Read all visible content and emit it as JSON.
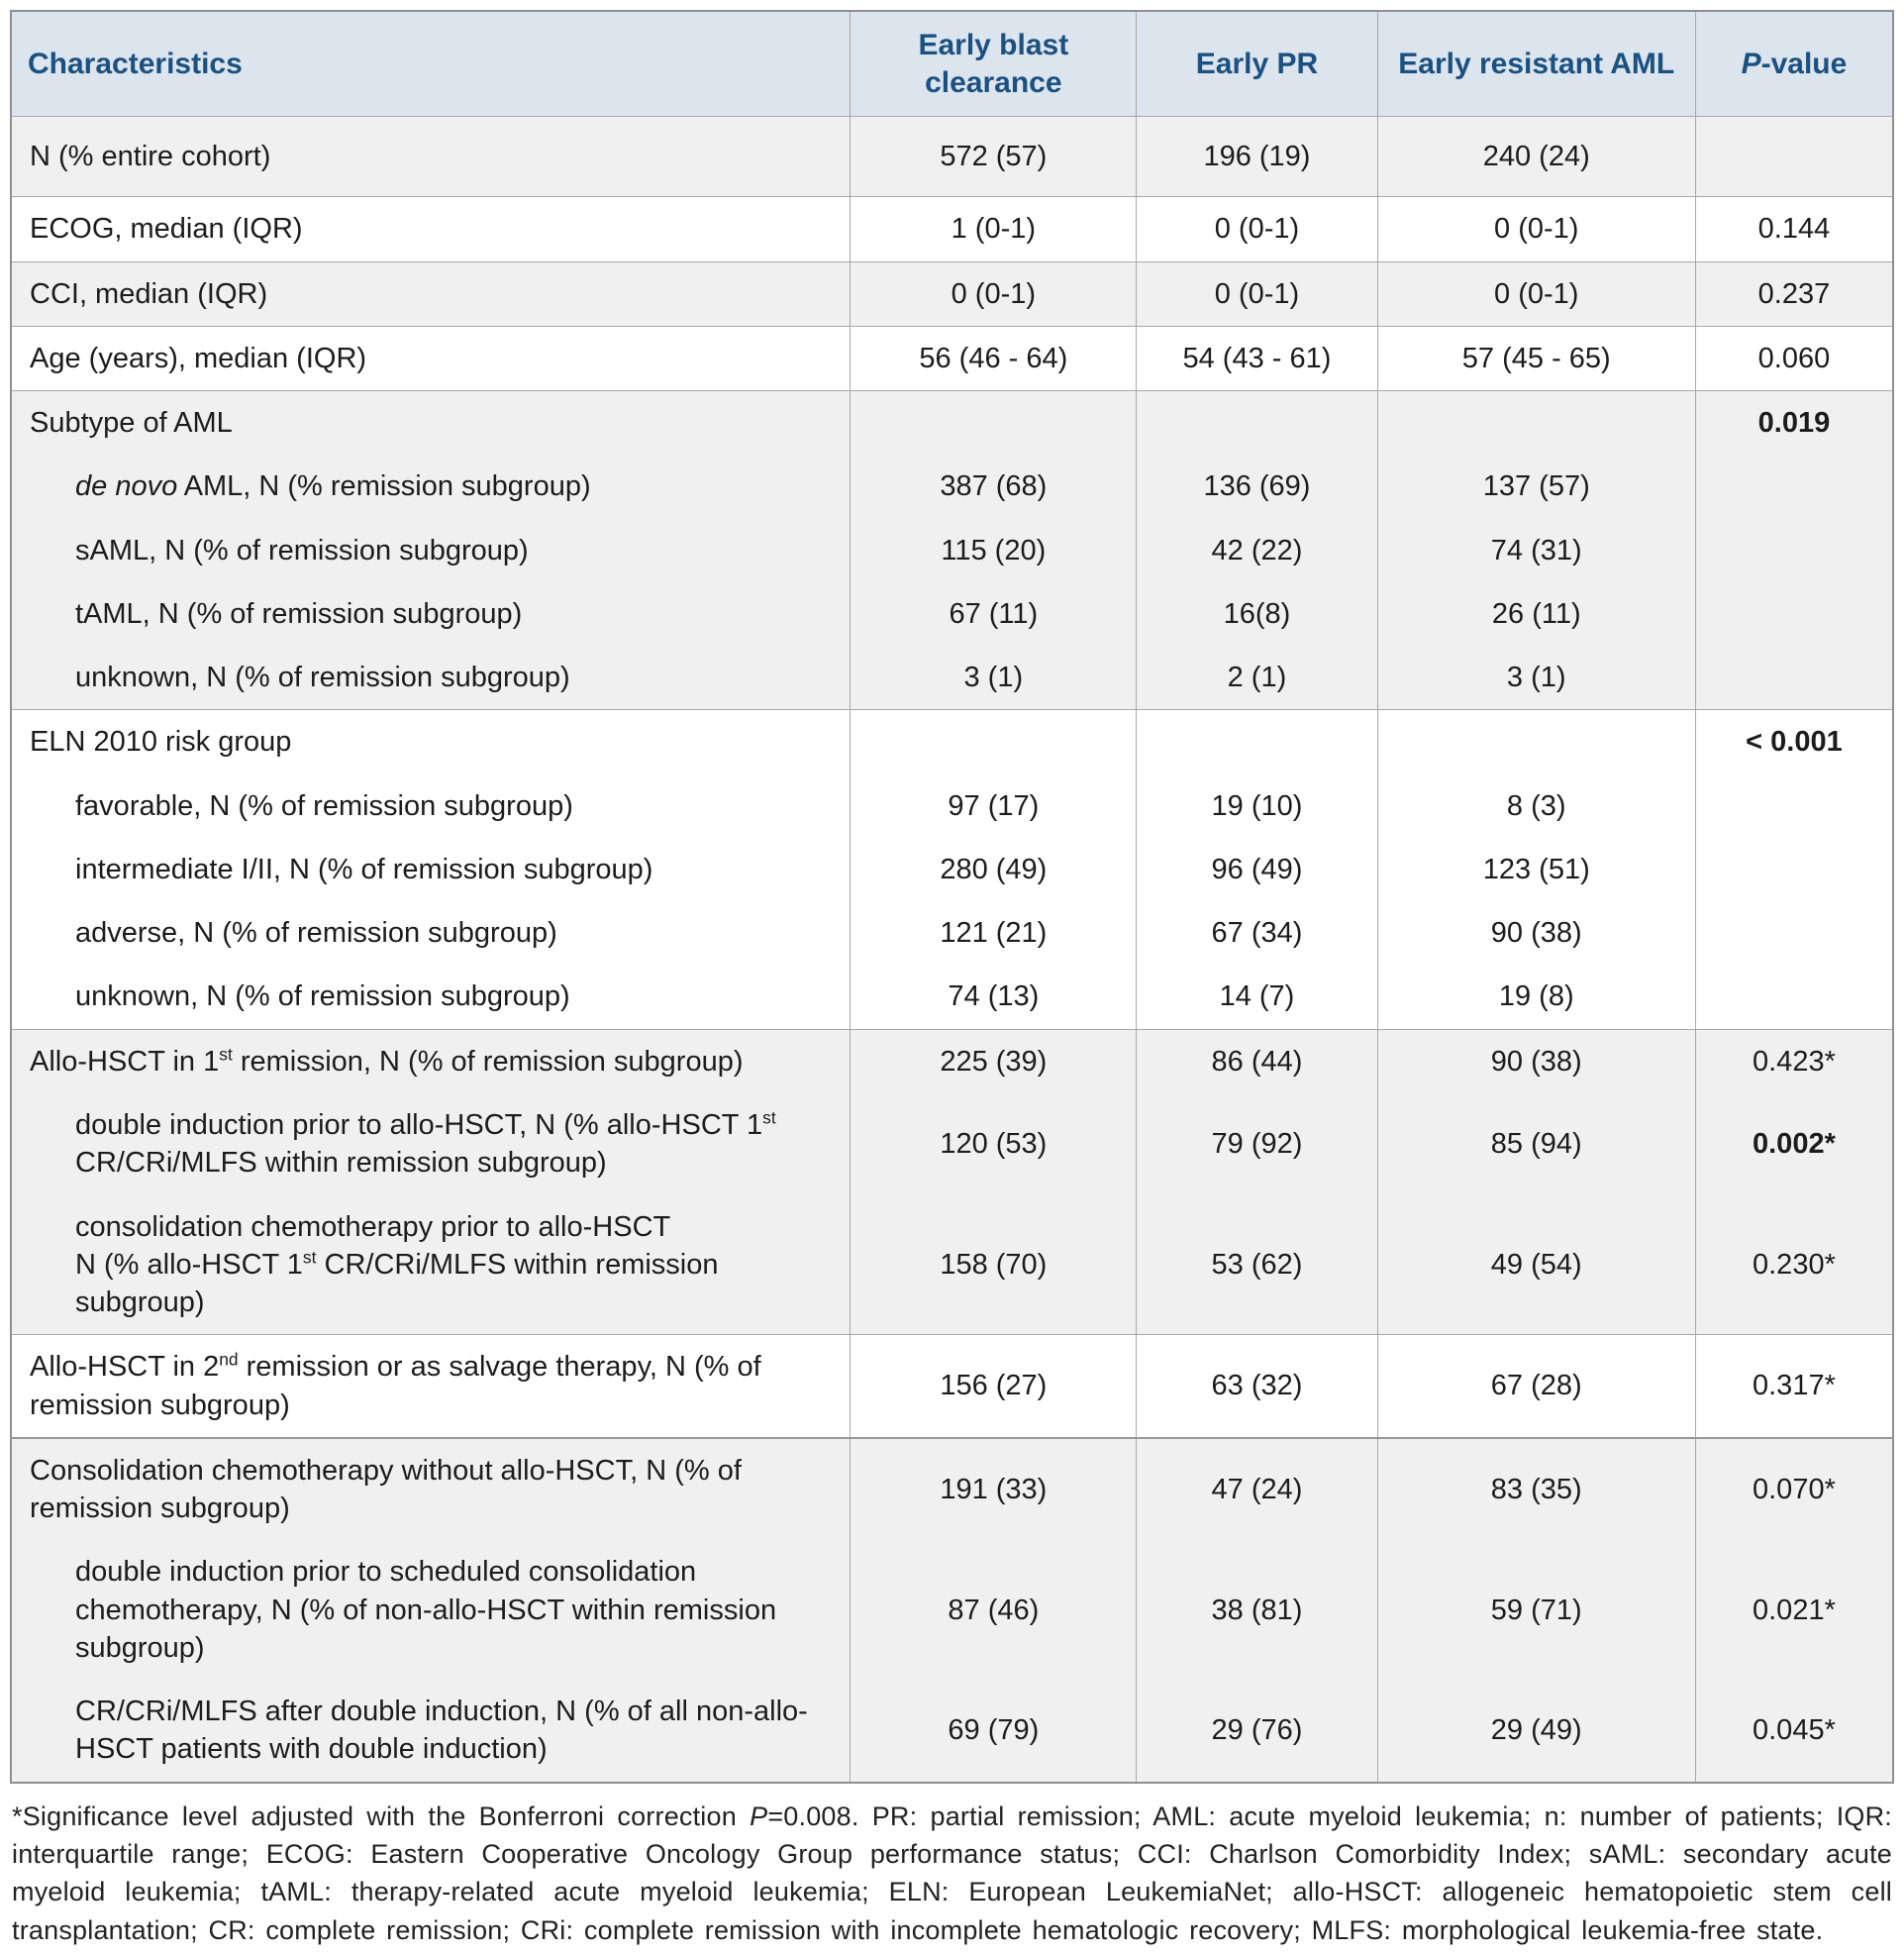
{
  "colors": {
    "header_bg": "#dce4ee",
    "header_text": "#1b5180",
    "row_alt_bg": "#f0f0f0",
    "row_bg": "#ffffff",
    "border": "#a8a8a8",
    "outer_border": "#8f8f8f",
    "text": "#1c1c1c"
  },
  "header": {
    "columns": [
      {
        "id": "characteristics",
        "align": "left",
        "parts": [
          {
            "t": "text",
            "v": "Characteristics"
          }
        ]
      },
      {
        "id": "early-blast-clearance",
        "parts": [
          {
            "t": "text",
            "v": "Early blast clearance"
          }
        ]
      },
      {
        "id": "early-pr",
        "parts": [
          {
            "t": "text",
            "v": "Early PR"
          }
        ]
      },
      {
        "id": "early-resistant-aml",
        "parts": [
          {
            "t": "text",
            "v": "Early resistant AML"
          }
        ]
      },
      {
        "id": "p-value",
        "parts": [
          {
            "t": "i",
            "v": "P"
          },
          {
            "t": "text",
            "v": "-value"
          }
        ]
      }
    ]
  },
  "rows": [
    {
      "shade": "gray",
      "first": true,
      "tall": true,
      "indent": false,
      "p_bold": false,
      "label_parts": [
        {
          "t": "text",
          "v": "N (% entire cohort)"
        }
      ],
      "values": [
        "572 (57)",
        "196 (19)",
        "240 (24)",
        ""
      ]
    },
    {
      "shade": "white",
      "first": true,
      "indent": false,
      "p_bold": false,
      "label_parts": [
        {
          "t": "text",
          "v": "ECOG, median (IQR)"
        }
      ],
      "values": [
        "1 (0-1)",
        "0 (0-1)",
        "0 (0-1)",
        "0.144"
      ]
    },
    {
      "shade": "gray",
      "first": true,
      "indent": false,
      "p_bold": false,
      "label_parts": [
        {
          "t": "text",
          "v": "CCI, median (IQR)"
        }
      ],
      "values": [
        "0 (0-1)",
        "0 (0-1)",
        "0 (0-1)",
        "0.237"
      ]
    },
    {
      "shade": "white",
      "first": true,
      "indent": false,
      "p_bold": false,
      "label_parts": [
        {
          "t": "text",
          "v": "Age (years), median (IQR)"
        }
      ],
      "values": [
        "56 (46 - 64)",
        "54 (43 - 61)",
        "57 (45 - 65)",
        "0.060"
      ]
    },
    {
      "shade": "gray",
      "first": true,
      "indent": false,
      "p_bold": true,
      "label_parts": [
        {
          "t": "text",
          "v": "Subtype of AML"
        }
      ],
      "values": [
        "",
        "",
        "",
        "0.019"
      ]
    },
    {
      "shade": "gray",
      "first": false,
      "indent": true,
      "p_bold": false,
      "label_parts": [
        {
          "t": "i",
          "v": "de novo"
        },
        {
          "t": "text",
          "v": " AML, N (% remission subgroup)"
        }
      ],
      "values": [
        "387 (68)",
        "136 (69)",
        "137 (57)",
        ""
      ]
    },
    {
      "shade": "gray",
      "first": false,
      "indent": true,
      "p_bold": false,
      "label_parts": [
        {
          "t": "text",
          "v": "sAML, N (% of remission subgroup)"
        }
      ],
      "values": [
        "115 (20)",
        "42 (22)",
        "74 (31)",
        ""
      ]
    },
    {
      "shade": "gray",
      "first": false,
      "indent": true,
      "p_bold": false,
      "label_parts": [
        {
          "t": "text",
          "v": "tAML, N (% of remission subgroup)"
        }
      ],
      "values": [
        "67 (11)",
        "16(8)",
        "26 (11)",
        ""
      ]
    },
    {
      "shade": "gray",
      "first": false,
      "indent": true,
      "p_bold": false,
      "label_parts": [
        {
          "t": "text",
          "v": "unknown, N (% of remission subgroup)"
        }
      ],
      "values": [
        "3 (1)",
        "2 (1)",
        "3 (1)",
        ""
      ]
    },
    {
      "shade": "white",
      "first": true,
      "indent": false,
      "p_bold": true,
      "label_parts": [
        {
          "t": "text",
          "v": "ELN 2010 risk group"
        }
      ],
      "values": [
        "",
        "",
        "",
        "< 0.001"
      ]
    },
    {
      "shade": "white",
      "first": false,
      "indent": true,
      "p_bold": false,
      "label_parts": [
        {
          "t": "text",
          "v": "favorable, N (% of remission subgroup)"
        }
      ],
      "values": [
        "97 (17)",
        "19 (10)",
        "8 (3)",
        ""
      ]
    },
    {
      "shade": "white",
      "first": false,
      "indent": true,
      "p_bold": false,
      "label_parts": [
        {
          "t": "text",
          "v": "intermediate I/II, N (% of remission subgroup)"
        }
      ],
      "values": [
        "280 (49)",
        "96 (49)",
        "123 (51)",
        ""
      ]
    },
    {
      "shade": "white",
      "first": false,
      "indent": true,
      "p_bold": false,
      "label_parts": [
        {
          "t": "text",
          "v": "adverse, N (% of remission subgroup)"
        }
      ],
      "values": [
        "121 (21)",
        "67 (34)",
        "90 (38)",
        ""
      ]
    },
    {
      "shade": "white",
      "first": false,
      "indent": true,
      "p_bold": false,
      "label_parts": [
        {
          "t": "text",
          "v": "unknown, N (% of remission subgroup)"
        }
      ],
      "values": [
        "74 (13)",
        "14 (7)",
        "19 (8)",
        ""
      ]
    },
    {
      "shade": "gray",
      "first": true,
      "indent": false,
      "p_bold": false,
      "label_parts": [
        {
          "t": "text",
          "v": "Allo-HSCT in 1"
        },
        {
          "t": "sup",
          "v": "st"
        },
        {
          "t": "text",
          "v": " remission, N (% of remission subgroup)"
        }
      ],
      "values": [
        "225 (39)",
        "86 (44)",
        "90 (38)",
        "0.423*"
      ]
    },
    {
      "shade": "gray",
      "first": false,
      "indent": true,
      "p_bold": true,
      "label_parts": [
        {
          "t": "text",
          "v": "double induction prior to allo-HSCT, N (% allo-HSCT 1"
        },
        {
          "t": "sup",
          "v": "st"
        },
        {
          "t": "text",
          "v": " CR/CRi/MLFS within remission subgroup)"
        }
      ],
      "values": [
        "120 (53)",
        "79 (92)",
        "85 (94)",
        "0.002*"
      ]
    },
    {
      "shade": "gray",
      "first": false,
      "indent": true,
      "p_bold": false,
      "label_parts": [
        {
          "t": "text",
          "v": "consolidation chemotherapy prior to allo-HSCT"
        },
        {
          "t": "br"
        },
        {
          "t": "text",
          "v": "N (% allo-HSCT 1"
        },
        {
          "t": "sup",
          "v": "st"
        },
        {
          "t": "text",
          "v": " CR/CRi/MLFS within remission subgroup)"
        }
      ],
      "values": [
        "158 (70)",
        "53 (62)",
        "49 (54)",
        "0.230*"
      ]
    },
    {
      "shade": "white",
      "first": true,
      "indent": false,
      "p_bold": false,
      "label_parts": [
        {
          "t": "text",
          "v": "Allo-HSCT in 2"
        },
        {
          "t": "sup",
          "v": "nd"
        },
        {
          "t": "text",
          "v": " remission or as salvage therapy, N (% of remission subgroup)"
        }
      ],
      "values": [
        "156 (27)",
        "63 (32)",
        "67 (28)",
        "0.317*"
      ]
    },
    {
      "shade": "gray",
      "first": true,
      "thick": true,
      "indent": false,
      "p_bold": false,
      "label_parts": [
        {
          "t": "text",
          "v": "Consolidation chemotherapy without allo-HSCT, N (% of remission subgroup)"
        }
      ],
      "values": [
        "191 (33)",
        "47 (24)",
        "83 (35)",
        "0.070*"
      ]
    },
    {
      "shade": "gray",
      "first": false,
      "indent": true,
      "p_bold": false,
      "label_parts": [
        {
          "t": "text",
          "v": "double induction prior to scheduled consolidation chemotherapy, N (% of non-allo-HSCT within remission subgroup)"
        }
      ],
      "values": [
        "87 (46)",
        "38 (81)",
        "59 (71)",
        "0.021*"
      ]
    },
    {
      "shade": "gray",
      "first": false,
      "indent": true,
      "p_bold": false,
      "label_parts": [
        {
          "t": "text",
          "v": "CR/CRi/MLFS after double induction, N (% of all non-allo-HSCT patients with double induction)"
        }
      ],
      "values": [
        "69 (79)",
        "29 (76)",
        "29 (49)",
        "0.045*"
      ]
    }
  ],
  "footnote": {
    "parts": [
      {
        "t": "text",
        "v": "*Significance level adjusted with the Bonferroni correction "
      },
      {
        "t": "i",
        "v": "P"
      },
      {
        "t": "text",
        "v": "=0.008. PR: partial remission; AML: acute myeloid leukemia; n: number of patients; IQR: interquartile range; ECOG: Eastern Cooperative Oncology Group performance status; CCI: Charlson Comorbidity Index; sAML: secondary acute myeloid leukemia; tAML: therapy-related acute myeloid leukemia; ELN: European LeukemiaNet; allo-HSCT: allogeneic hematopoietic stem cell transplantation; CR: complete remission; CRi: complete remission with incomplete hematologic recovery; MLFS: morphological leukemia-free state."
      }
    ]
  }
}
